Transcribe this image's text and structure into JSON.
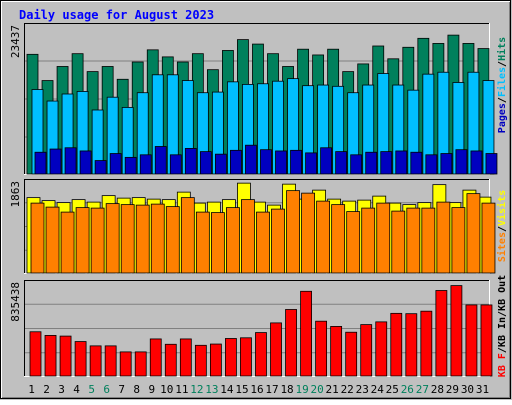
{
  "chart_data": [
    {
      "type": "bar",
      "title": "Daily usage for August 2023",
      "categories": [
        "1",
        "2",
        "3",
        "4",
        "5",
        "6",
        "7",
        "8",
        "9",
        "10",
        "11",
        "12",
        "13",
        "14",
        "15",
        "16",
        "17",
        "18",
        "19",
        "20",
        "21",
        "22",
        "23",
        "24",
        "25",
        "26",
        "27",
        "28",
        "29",
        "30",
        "31"
      ],
      "weekend_days": [
        "5",
        "6",
        "12",
        "13",
        "19",
        "20",
        "26",
        "27"
      ],
      "y_tick_label": "23437",
      "ylim": [
        0,
        23437
      ],
      "legend": [
        "Pages",
        "Files",
        "Hits"
      ],
      "legend_separator": "/",
      "series": [
        {
          "name": "Hits",
          "color": "#00805c",
          "values": [
            18700,
            14600,
            16800,
            18800,
            16000,
            16800,
            14800,
            17500,
            19400,
            18300,
            17500,
            18800,
            16300,
            19300,
            21000,
            20300,
            18800,
            16800,
            19500,
            18600,
            19500,
            16000,
            17200,
            20000,
            18000,
            19800,
            21200,
            20400,
            21700,
            20400,
            19600
          ]
        },
        {
          "name": "Files",
          "color": "#00bfff",
          "values": [
            13200,
            11400,
            12500,
            12900,
            10000,
            12000,
            10400,
            12700,
            15500,
            15500,
            14600,
            12700,
            12800,
            14400,
            14000,
            14100,
            14500,
            14900,
            13800,
            13900,
            13700,
            12700,
            13900,
            15700,
            13900,
            13100,
            15600,
            15900,
            14300,
            15900,
            14600
          ]
        },
        {
          "name": "Pages",
          "color": "#0000c0",
          "values": [
            3400,
            3900,
            4100,
            3600,
            2100,
            3200,
            2600,
            3000,
            4300,
            3000,
            4000,
            3500,
            3100,
            3700,
            4500,
            3800,
            3600,
            3700,
            3300,
            4100,
            3500,
            3000,
            3400,
            3500,
            3600,
            3400,
            3000,
            3200,
            3800,
            3600,
            3200
          ]
        }
      ]
    },
    {
      "type": "bar",
      "y_tick_label": "1863",
      "ylim": [
        0,
        1863
      ],
      "legend": [
        "Sites",
        "Visits"
      ],
      "legend_separator": "/",
      "series": [
        {
          "name": "Visits",
          "color": "#ffff00",
          "values": [
            1510,
            1450,
            1410,
            1470,
            1420,
            1550,
            1500,
            1510,
            1480,
            1470,
            1620,
            1400,
            1420,
            1470,
            1800,
            1420,
            1360,
            1780,
            1480,
            1660,
            1480,
            1440,
            1460,
            1540,
            1400,
            1370,
            1410,
            1770,
            1410,
            1660,
            1520
          ]
        },
        {
          "name": "Sites",
          "color": "#ff8000",
          "values": [
            1400,
            1320,
            1220,
            1310,
            1300,
            1390,
            1370,
            1360,
            1380,
            1330,
            1510,
            1220,
            1210,
            1310,
            1470,
            1220,
            1280,
            1650,
            1600,
            1440,
            1370,
            1230,
            1300,
            1400,
            1240,
            1300,
            1300,
            1420,
            1310,
            1590,
            1400
          ]
        }
      ]
    },
    {
      "type": "bar",
      "y_tick_label": "835438",
      "ylim": [
        0,
        835438
      ],
      "legend": [
        "KB F",
        "KB In",
        "KB Out"
      ],
      "legend_separator": "/",
      "series": [
        {
          "name": "KB F",
          "color": "#ff0000",
          "values": [
            389000,
            357000,
            351000,
            303000,
            265000,
            265000,
            212000,
            212000,
            326000,
            279000,
            326000,
            270000,
            281000,
            330000,
            336000,
            382000,
            467000,
            585000,
            745000,
            482000,
            436000,
            385000,
            452000,
            476000,
            551000,
            548000,
            570000,
            752000,
            795000,
            625000,
            625000
          ]
        }
      ]
    }
  ]
}
